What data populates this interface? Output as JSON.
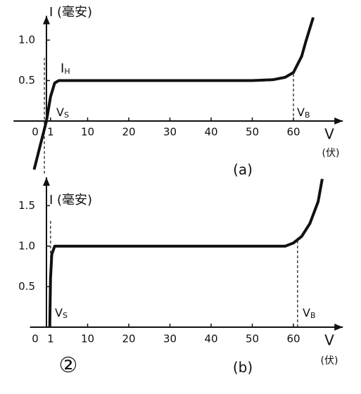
{
  "chart_data": [
    {
      "type": "line",
      "xlim": [
        -8,
        72
      ],
      "ylim": [
        -0.65,
        1.3
      ],
      "xticks": [
        0,
        1,
        10,
        20,
        30,
        40,
        50,
        60
      ],
      "yticks": [
        0.5,
        {
          "value": 1,
          "label": "1.0"
        }
      ],
      "y_label": "I (毫安)",
      "x_label": "V",
      "x_unit": "(伏)",
      "x": [
        -3,
        -1.5,
        0,
        1,
        2,
        3,
        10,
        20,
        30,
        40,
        50,
        55,
        58,
        60,
        62,
        63,
        64.8
      ],
      "series": [
        {
          "color": "#111111",
          "values": [
            -0.6,
            -0.3,
            0,
            0.3,
            0.47,
            0.5,
            0.5,
            0.5,
            0.5,
            0.5,
            0.5,
            0.51,
            0.54,
            0.6,
            0.8,
            0.98,
            1.28
          ]
        }
      ],
      "vlines": [
        -0.5,
        60
      ],
      "annotations": [
        {
          "text": "I",
          "sub": "H"
        },
        {
          "text": "V",
          "sub": "S"
        },
        {
          "text": "V",
          "sub": "B"
        },
        {
          "text": "(a)"
        }
      ]
    },
    {
      "type": "line",
      "xlim": [
        -4,
        72
      ],
      "ylim": [
        0,
        1.85
      ],
      "xticks": [
        0,
        1,
        10,
        20,
        30,
        40,
        50,
        60
      ],
      "yticks": [
        0.5,
        {
          "value": 1,
          "label": "1.0"
        },
        1.5
      ],
      "y_label": "I (毫安)",
      "x_label": "V",
      "x_unit": "(伏)",
      "x": [
        0.8,
        1,
        1.3,
        2,
        10,
        20,
        30,
        40,
        50,
        58,
        60,
        62,
        64,
        66,
        67
      ],
      "series": [
        {
          "color": "#111111",
          "values": [
            0,
            0.6,
            0.9,
            1.0,
            1.0,
            1.0,
            1.0,
            1.0,
            1.0,
            1.0,
            1.04,
            1.12,
            1.28,
            1.55,
            1.83
          ]
        }
      ],
      "vlines": [
        1,
        61
      ],
      "annotations": [
        {
          "text": "V",
          "sub": "S"
        },
        {
          "text": "V",
          "sub": "B"
        },
        {
          "text": "(b)"
        },
        {
          "text": "②"
        }
      ]
    }
  ]
}
